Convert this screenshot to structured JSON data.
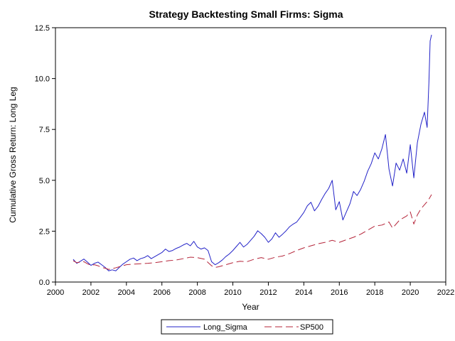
{
  "chart_data": {
    "type": "line",
    "title": "Strategy Backtesting Small Firms: Sigma",
    "xlabel": "Year",
    "ylabel": "Cumulative Gross Return: Long Leg",
    "xlim": [
      2000,
      2022
    ],
    "ylim": [
      0,
      12.5
    ],
    "x_ticks": [
      "2000",
      "2002",
      "2004",
      "2006",
      "2008",
      "2010",
      "2012",
      "2014",
      "2016",
      "2018",
      "2020",
      "2022"
    ],
    "y_ticks": [
      "0.0",
      "2.5",
      "5.0",
      "7.5",
      "10.0",
      "12.5"
    ],
    "grid": false,
    "legend_position": "bottom",
    "series": [
      {
        "name": "Long_Sigma",
        "color": "#2323c8",
        "dash": "solid",
        "points": [
          [
            2001.0,
            1.12
          ],
          [
            2001.2,
            0.92
          ],
          [
            2001.4,
            1.02
          ],
          [
            2001.6,
            1.13
          ],
          [
            2001.8,
            0.98
          ],
          [
            2002.0,
            0.82
          ],
          [
            2002.2,
            0.92
          ],
          [
            2002.4,
            0.98
          ],
          [
            2002.6,
            0.85
          ],
          [
            2002.8,
            0.72
          ],
          [
            2003.0,
            0.55
          ],
          [
            2003.2,
            0.6
          ],
          [
            2003.4,
            0.55
          ],
          [
            2003.6,
            0.72
          ],
          [
            2003.8,
            0.88
          ],
          [
            2004.0,
            1.0
          ],
          [
            2004.2,
            1.12
          ],
          [
            2004.4,
            1.18
          ],
          [
            2004.6,
            1.05
          ],
          [
            2004.8,
            1.15
          ],
          [
            2005.0,
            1.2
          ],
          [
            2005.2,
            1.3
          ],
          [
            2005.4,
            1.15
          ],
          [
            2005.6,
            1.25
          ],
          [
            2005.8,
            1.35
          ],
          [
            2006.0,
            1.45
          ],
          [
            2006.2,
            1.62
          ],
          [
            2006.4,
            1.5
          ],
          [
            2006.6,
            1.55
          ],
          [
            2006.8,
            1.65
          ],
          [
            2007.0,
            1.72
          ],
          [
            2007.2,
            1.82
          ],
          [
            2007.4,
            1.9
          ],
          [
            2007.6,
            1.78
          ],
          [
            2007.8,
            2.0
          ],
          [
            2008.0,
            1.72
          ],
          [
            2008.2,
            1.62
          ],
          [
            2008.4,
            1.68
          ],
          [
            2008.6,
            1.55
          ],
          [
            2008.8,
            1.0
          ],
          [
            2009.0,
            0.85
          ],
          [
            2009.2,
            0.95
          ],
          [
            2009.4,
            1.08
          ],
          [
            2009.6,
            1.25
          ],
          [
            2009.8,
            1.38
          ],
          [
            2010.0,
            1.55
          ],
          [
            2010.2,
            1.75
          ],
          [
            2010.4,
            1.95
          ],
          [
            2010.6,
            1.72
          ],
          [
            2010.8,
            1.85
          ],
          [
            2011.0,
            2.05
          ],
          [
            2011.2,
            2.25
          ],
          [
            2011.4,
            2.52
          ],
          [
            2011.6,
            2.38
          ],
          [
            2011.8,
            2.2
          ],
          [
            2012.0,
            1.95
          ],
          [
            2012.2,
            2.12
          ],
          [
            2012.4,
            2.42
          ],
          [
            2012.6,
            2.2
          ],
          [
            2012.8,
            2.35
          ],
          [
            2013.0,
            2.52
          ],
          [
            2013.2,
            2.72
          ],
          [
            2013.4,
            2.85
          ],
          [
            2013.6,
            2.95
          ],
          [
            2013.8,
            3.18
          ],
          [
            2014.0,
            3.42
          ],
          [
            2014.2,
            3.75
          ],
          [
            2014.4,
            3.92
          ],
          [
            2014.6,
            3.5
          ],
          [
            2014.8,
            3.72
          ],
          [
            2015.0,
            4.05
          ],
          [
            2015.2,
            4.35
          ],
          [
            2015.4,
            4.6
          ],
          [
            2015.6,
            5.0
          ],
          [
            2015.8,
            3.55
          ],
          [
            2016.0,
            3.95
          ],
          [
            2016.2,
            3.05
          ],
          [
            2016.4,
            3.45
          ],
          [
            2016.6,
            3.85
          ],
          [
            2016.8,
            4.45
          ],
          [
            2017.0,
            4.25
          ],
          [
            2017.2,
            4.55
          ],
          [
            2017.4,
            4.95
          ],
          [
            2017.6,
            5.45
          ],
          [
            2017.8,
            5.82
          ],
          [
            2018.0,
            6.35
          ],
          [
            2018.2,
            6.05
          ],
          [
            2018.4,
            6.55
          ],
          [
            2018.6,
            7.25
          ],
          [
            2018.8,
            5.55
          ],
          [
            2019.0,
            4.72
          ],
          [
            2019.2,
            5.85
          ],
          [
            2019.4,
            5.5
          ],
          [
            2019.6,
            6.05
          ],
          [
            2019.8,
            5.35
          ],
          [
            2020.0,
            6.75
          ],
          [
            2020.2,
            5.12
          ],
          [
            2020.4,
            6.85
          ],
          [
            2020.6,
            7.75
          ],
          [
            2020.8,
            8.35
          ],
          [
            2020.95,
            7.6
          ],
          [
            2021.05,
            9.8
          ],
          [
            2021.12,
            11.85
          ],
          [
            2021.2,
            12.15
          ]
        ]
      },
      {
        "name": "SP500",
        "color": "#b5253a",
        "dash": "dashed",
        "points": [
          [
            2001.0,
            1.05
          ],
          [
            2001.2,
            0.95
          ],
          [
            2001.4,
            0.98
          ],
          [
            2001.6,
            1.0
          ],
          [
            2001.8,
            0.9
          ],
          [
            2002.0,
            0.82
          ],
          [
            2002.2,
            0.85
          ],
          [
            2002.4,
            0.8
          ],
          [
            2002.6,
            0.72
          ],
          [
            2002.8,
            0.68
          ],
          [
            2003.0,
            0.62
          ],
          [
            2003.2,
            0.66
          ],
          [
            2003.4,
            0.7
          ],
          [
            2003.6,
            0.75
          ],
          [
            2003.8,
            0.8
          ],
          [
            2004.0,
            0.85
          ],
          [
            2004.4,
            0.88
          ],
          [
            2004.8,
            0.9
          ],
          [
            2005.2,
            0.92
          ],
          [
            2005.6,
            0.95
          ],
          [
            2006.0,
            1.0
          ],
          [
            2006.4,
            1.05
          ],
          [
            2006.8,
            1.08
          ],
          [
            2007.2,
            1.15
          ],
          [
            2007.6,
            1.22
          ],
          [
            2008.0,
            1.2
          ],
          [
            2008.4,
            1.12
          ],
          [
            2008.8,
            0.8
          ],
          [
            2009.0,
            0.72
          ],
          [
            2009.2,
            0.75
          ],
          [
            2009.6,
            0.85
          ],
          [
            2010.0,
            0.95
          ],
          [
            2010.4,
            1.02
          ],
          [
            2010.8,
            1.0
          ],
          [
            2011.2,
            1.12
          ],
          [
            2011.6,
            1.2
          ],
          [
            2012.0,
            1.12
          ],
          [
            2012.4,
            1.22
          ],
          [
            2012.8,
            1.28
          ],
          [
            2013.2,
            1.4
          ],
          [
            2013.6,
            1.55
          ],
          [
            2014.0,
            1.68
          ],
          [
            2014.4,
            1.78
          ],
          [
            2014.8,
            1.88
          ],
          [
            2015.2,
            1.95
          ],
          [
            2015.6,
            2.05
          ],
          [
            2016.0,
            1.95
          ],
          [
            2016.4,
            2.08
          ],
          [
            2016.8,
            2.2
          ],
          [
            2017.2,
            2.35
          ],
          [
            2017.6,
            2.55
          ],
          [
            2018.0,
            2.75
          ],
          [
            2018.4,
            2.8
          ],
          [
            2018.8,
            2.95
          ],
          [
            2019.0,
            2.65
          ],
          [
            2019.4,
            3.05
          ],
          [
            2019.8,
            3.25
          ],
          [
            2020.0,
            3.45
          ],
          [
            2020.2,
            2.85
          ],
          [
            2020.4,
            3.3
          ],
          [
            2020.6,
            3.6
          ],
          [
            2020.8,
            3.8
          ],
          [
            2021.0,
            4.0
          ],
          [
            2021.2,
            4.3
          ]
        ]
      }
    ]
  }
}
